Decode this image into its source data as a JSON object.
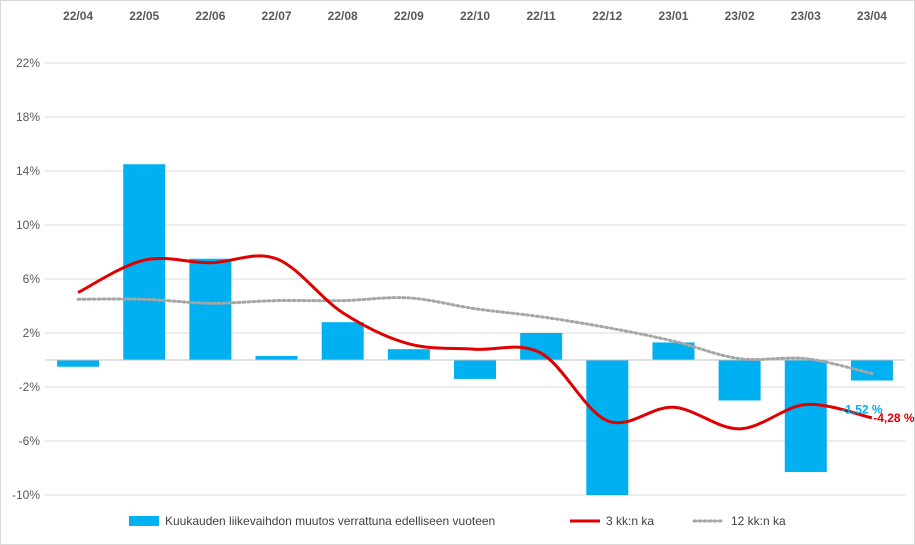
{
  "chart_data": {
    "type": "bar",
    "categories": [
      "22/04",
      "22/05",
      "22/06",
      "22/07",
      "22/08",
      "22/09",
      "22/10",
      "22/11",
      "22/12",
      "23/01",
      "23/02",
      "23/03",
      "23/04"
    ],
    "ylim": [
      -10,
      22
    ],
    "yticks": [
      22,
      18,
      14,
      10,
      6,
      2,
      -2,
      -6,
      -10
    ],
    "ytick_labels": [
      "22%",
      "18%",
      "14%",
      "10%",
      "6%",
      "2%",
      "-2%",
      "-6%",
      "-10%"
    ],
    "grid": true,
    "legend_position": "bottom",
    "series": [
      {
        "name": "Kuukauden liikevaihdon muutos verrattuna edelliseen vuoteen",
        "type": "bar",
        "color": "#00b0f0",
        "values": [
          -0.5,
          14.5,
          7.5,
          0.3,
          2.8,
          0.8,
          -1.4,
          2.0,
          -10.0,
          1.3,
          -3.0,
          -8.3,
          -1.52
        ]
      },
      {
        "name": "3 kk:n ka",
        "type": "line",
        "smooth": true,
        "color": "#e00000",
        "values": [
          5.0,
          7.4,
          7.2,
          7.5,
          3.5,
          1.2,
          0.8,
          0.5,
          -4.5,
          -3.5,
          -5.1,
          -3.3,
          -4.28
        ]
      },
      {
        "name": "12 kk:n ka",
        "type": "line",
        "smooth": true,
        "dotted": true,
        "color": "#a6a6a6",
        "values": [
          4.5,
          4.5,
          4.2,
          4.4,
          4.4,
          4.6,
          3.8,
          3.2,
          2.4,
          1.4,
          0.1,
          0.1,
          -1.0
        ]
      }
    ],
    "data_labels": [
      {
        "text": "-1,52 %",
        "series": 0,
        "index": 12,
        "color": "#00b0f0"
      },
      {
        "text": "-4,28 %",
        "series": 1,
        "index": 12,
        "color": "#e00000"
      }
    ]
  }
}
